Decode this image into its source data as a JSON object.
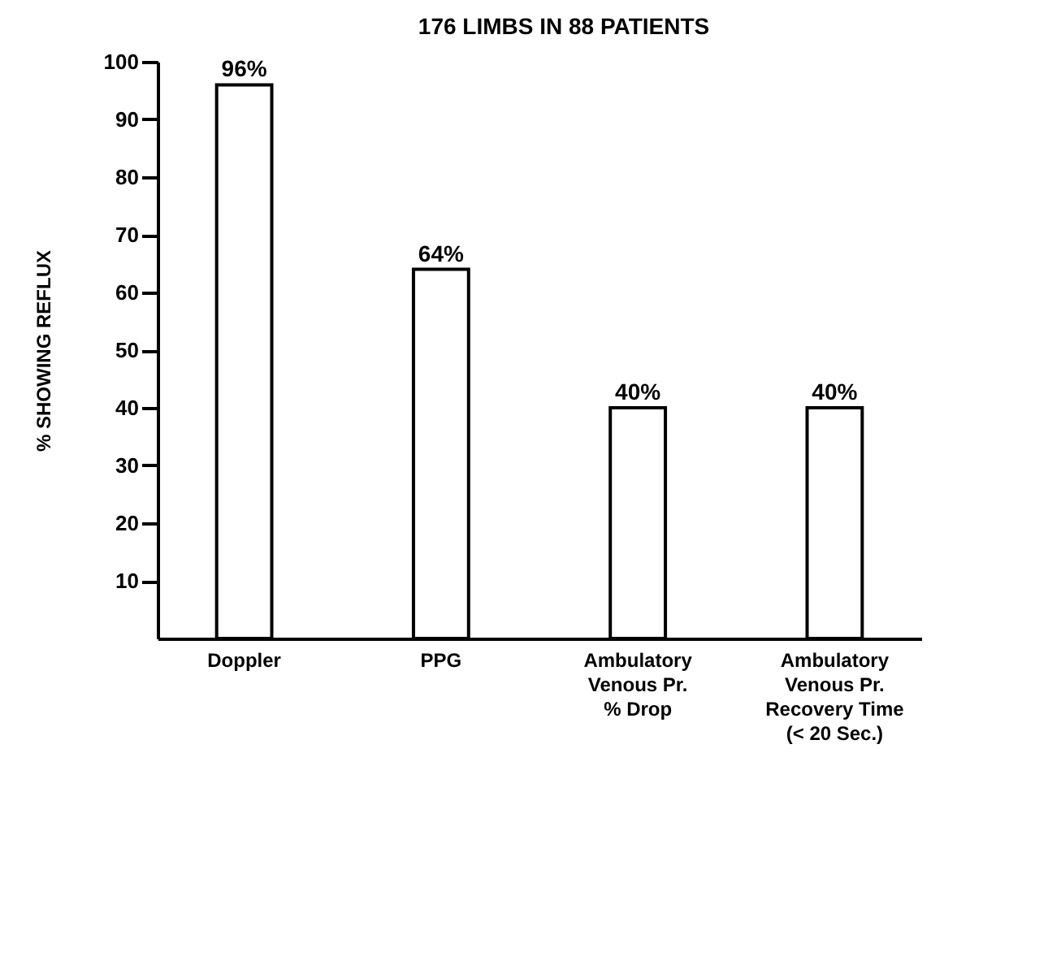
{
  "chart_data": {
    "type": "bar",
    "title": "176 LIMBS IN 88 PATIENTS",
    "ylabel": "% SHOWING REFLUX",
    "categories": [
      "Doppler",
      "PPG",
      "Ambulatory\nVenous Pr.\n% Drop",
      "Ambulatory\nVenous Pr.\nRecovery Time\n(< 20 Sec.)"
    ],
    "values": [
      96,
      64,
      40,
      40
    ],
    "value_labels": [
      "96%",
      "64%",
      "40%",
      "40%"
    ],
    "color": "#ffffff",
    "ylim": [
      0,
      100
    ],
    "yticks": [
      10,
      20,
      30,
      40,
      50,
      60,
      70,
      80,
      90,
      100
    ],
    "grid": false
  }
}
